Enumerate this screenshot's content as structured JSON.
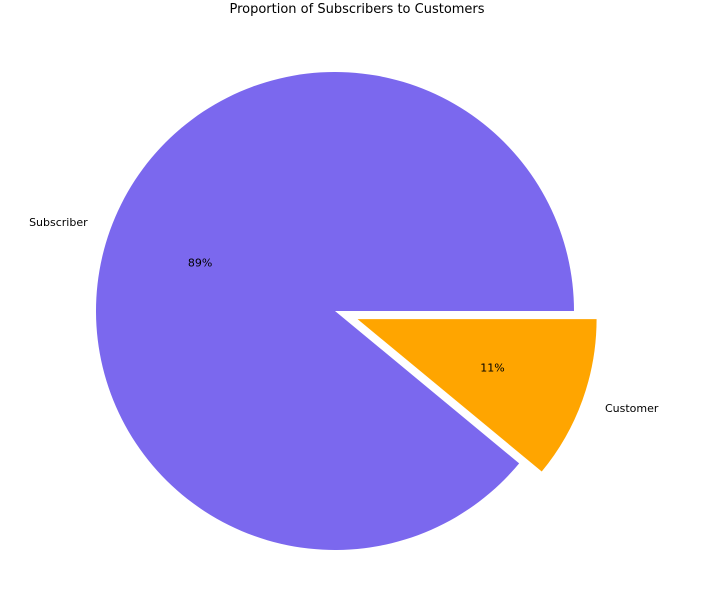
{
  "chart_data": {
    "type": "pie",
    "title": "Proportion of Subscribers to Customers",
    "slices": [
      {
        "label": "Subscriber",
        "value": 89,
        "pct_label": "89%",
        "color": "#7B68EE",
        "exploded": false
      },
      {
        "label": "Customer",
        "value": 11,
        "pct_label": "11%",
        "color": "#FFA500",
        "exploded": true
      }
    ],
    "start_angle_deg": 0,
    "direction": "counterclockwise"
  }
}
